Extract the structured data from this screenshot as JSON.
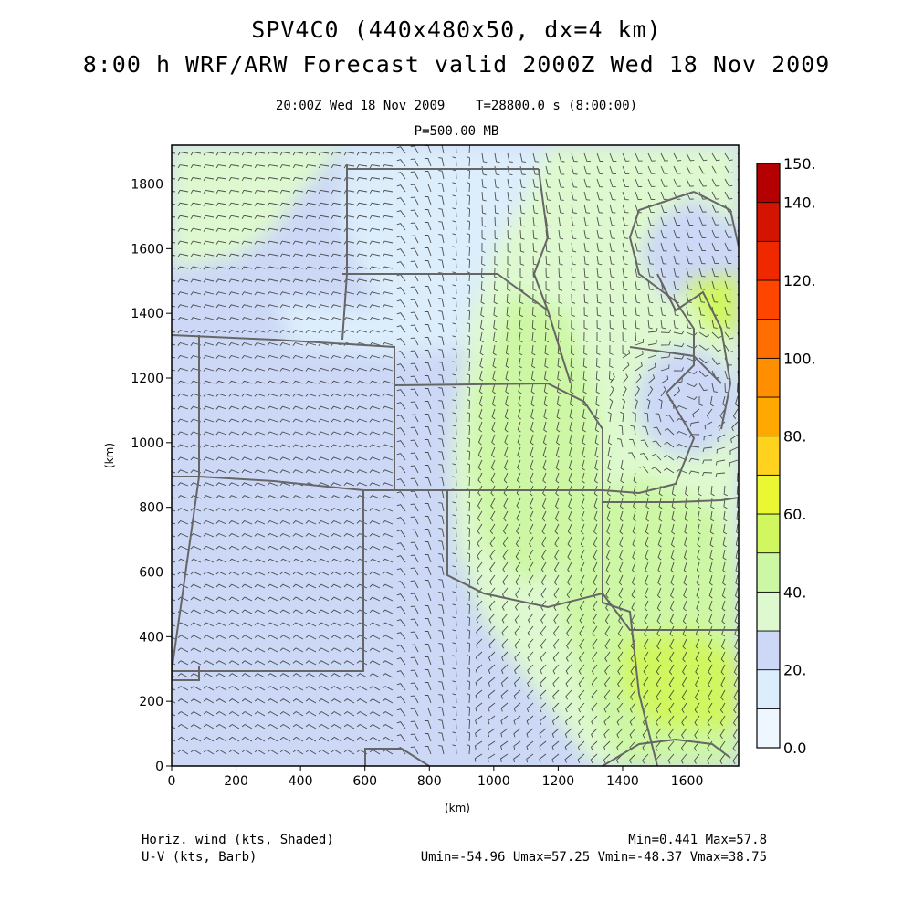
{
  "header": {
    "title_line1": "SPV4C0 (440x480x50, dx=4 km)",
    "title_line2": "8:00 h WRF/ARW Forecast valid 2000Z Wed 18 Nov 2009",
    "valid_time": "20:00Z Wed 18 Nov 2009",
    "time_seconds": "T=28800.0 s (8:00:00)",
    "pressure_level": "P=500.00 MB"
  },
  "axes": {
    "xlabel": "(km)",
    "ylabel": "(km)",
    "x_ticks": [
      "0",
      "200",
      "400",
      "600",
      "800",
      "1000",
      "1200",
      "1400",
      "1600"
    ],
    "y_ticks": [
      "0",
      "200",
      "400",
      "600",
      "800",
      "1000",
      "1200",
      "1400",
      "1600",
      "1800"
    ]
  },
  "colorbar": {
    "labels": [
      "0.0",
      "20.",
      "40.",
      "60.",
      "80.",
      "100.",
      "120.",
      "140.",
      "150."
    ],
    "bins": [
      {
        "from": 0,
        "to": 10,
        "color": "#eef7ff"
      },
      {
        "from": 10,
        "to": 20,
        "color": "#dcedfb"
      },
      {
        "from": 20,
        "to": 30,
        "color": "#ccd8f6"
      },
      {
        "from": 30,
        "to": 40,
        "color": "#def9cf"
      },
      {
        "from": 40,
        "to": 50,
        "color": "#cdf7a5"
      },
      {
        "from": 50,
        "to": 60,
        "color": "#d0f760"
      },
      {
        "from": 60,
        "to": 70,
        "color": "#eaf733"
      },
      {
        "from": 70,
        "to": 80,
        "color": "#ffd21e"
      },
      {
        "from": 80,
        "to": 90,
        "color": "#ffa800"
      },
      {
        "from": 90,
        "to": 100,
        "color": "#ff8e00"
      },
      {
        "from": 100,
        "to": 110,
        "color": "#ff6e00"
      },
      {
        "from": 110,
        "to": 120,
        "color": "#ff4600"
      },
      {
        "from": 120,
        "to": 130,
        "color": "#f02800"
      },
      {
        "from": 130,
        "to": 140,
        "color": "#d21400"
      },
      {
        "from": 140,
        "to": 150,
        "color": "#b40000"
      }
    ]
  },
  "footer": {
    "field1": "Horiz. wind (kts, Shaded)",
    "field2": "U-V (kts, Barb)",
    "minmax": "Min=0.441 Max=57.8",
    "uv_stats": "Umin=-54.96 Umax=57.25 Vmin=-48.37 Vmax=38.75"
  },
  "colors": {
    "frame": "#000000",
    "borders": "#666666",
    "barbs": "#333333"
  }
}
